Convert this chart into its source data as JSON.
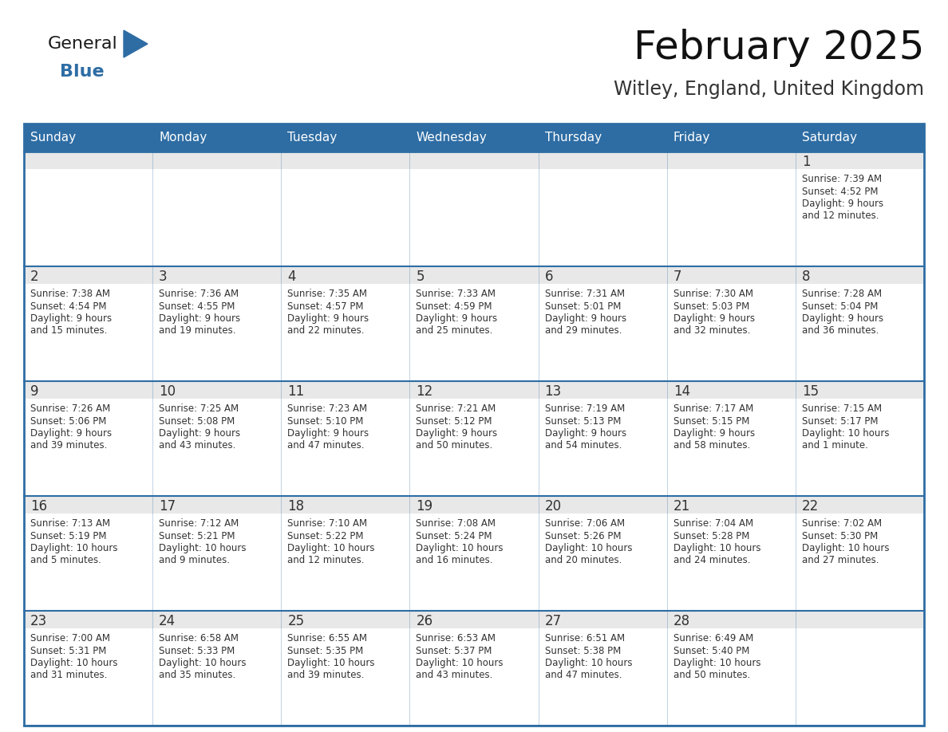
{
  "title": "February 2025",
  "subtitle": "Witley, England, United Kingdom",
  "header_color": "#2E6DA4",
  "header_text_color": "#FFFFFF",
  "day_num_bg_color": "#E8E8E8",
  "cell_bg_color": "#FFFFFF",
  "border_color": "#2E6DA4",
  "text_color": "#333333",
  "days_of_week": [
    "Sunday",
    "Monday",
    "Tuesday",
    "Wednesday",
    "Thursday",
    "Friday",
    "Saturday"
  ],
  "calendar_data": [
    [
      null,
      null,
      null,
      null,
      null,
      null,
      {
        "day": 1,
        "sunrise": "7:39 AM",
        "sunset": "4:52 PM",
        "daylight": "9 hours and 12 minutes."
      }
    ],
    [
      {
        "day": 2,
        "sunrise": "7:38 AM",
        "sunset": "4:54 PM",
        "daylight": "9 hours and 15 minutes."
      },
      {
        "day": 3,
        "sunrise": "7:36 AM",
        "sunset": "4:55 PM",
        "daylight": "9 hours and 19 minutes."
      },
      {
        "day": 4,
        "sunrise": "7:35 AM",
        "sunset": "4:57 PM",
        "daylight": "9 hours and 22 minutes."
      },
      {
        "day": 5,
        "sunrise": "7:33 AM",
        "sunset": "4:59 PM",
        "daylight": "9 hours and 25 minutes."
      },
      {
        "day": 6,
        "sunrise": "7:31 AM",
        "sunset": "5:01 PM",
        "daylight": "9 hours and 29 minutes."
      },
      {
        "day": 7,
        "sunrise": "7:30 AM",
        "sunset": "5:03 PM",
        "daylight": "9 hours and 32 minutes."
      },
      {
        "day": 8,
        "sunrise": "7:28 AM",
        "sunset": "5:04 PM",
        "daylight": "9 hours and 36 minutes."
      }
    ],
    [
      {
        "day": 9,
        "sunrise": "7:26 AM",
        "sunset": "5:06 PM",
        "daylight": "9 hours and 39 minutes."
      },
      {
        "day": 10,
        "sunrise": "7:25 AM",
        "sunset": "5:08 PM",
        "daylight": "9 hours and 43 minutes."
      },
      {
        "day": 11,
        "sunrise": "7:23 AM",
        "sunset": "5:10 PM",
        "daylight": "9 hours and 47 minutes."
      },
      {
        "day": 12,
        "sunrise": "7:21 AM",
        "sunset": "5:12 PM",
        "daylight": "9 hours and 50 minutes."
      },
      {
        "day": 13,
        "sunrise": "7:19 AM",
        "sunset": "5:13 PM",
        "daylight": "9 hours and 54 minutes."
      },
      {
        "day": 14,
        "sunrise": "7:17 AM",
        "sunset": "5:15 PM",
        "daylight": "9 hours and 58 minutes."
      },
      {
        "day": 15,
        "sunrise": "7:15 AM",
        "sunset": "5:17 PM",
        "daylight": "10 hours and 1 minute."
      }
    ],
    [
      {
        "day": 16,
        "sunrise": "7:13 AM",
        "sunset": "5:19 PM",
        "daylight": "10 hours and 5 minutes."
      },
      {
        "day": 17,
        "sunrise": "7:12 AM",
        "sunset": "5:21 PM",
        "daylight": "10 hours and 9 minutes."
      },
      {
        "day": 18,
        "sunrise": "7:10 AM",
        "sunset": "5:22 PM",
        "daylight": "10 hours and 12 minutes."
      },
      {
        "day": 19,
        "sunrise": "7:08 AM",
        "sunset": "5:24 PM",
        "daylight": "10 hours and 16 minutes."
      },
      {
        "day": 20,
        "sunrise": "7:06 AM",
        "sunset": "5:26 PM",
        "daylight": "10 hours and 20 minutes."
      },
      {
        "day": 21,
        "sunrise": "7:04 AM",
        "sunset": "5:28 PM",
        "daylight": "10 hours and 24 minutes."
      },
      {
        "day": 22,
        "sunrise": "7:02 AM",
        "sunset": "5:30 PM",
        "daylight": "10 hours and 27 minutes."
      }
    ],
    [
      {
        "day": 23,
        "sunrise": "7:00 AM",
        "sunset": "5:31 PM",
        "daylight": "10 hours and 31 minutes."
      },
      {
        "day": 24,
        "sunrise": "6:58 AM",
        "sunset": "5:33 PM",
        "daylight": "10 hours and 35 minutes."
      },
      {
        "day": 25,
        "sunrise": "6:55 AM",
        "sunset": "5:35 PM",
        "daylight": "10 hours and 39 minutes."
      },
      {
        "day": 26,
        "sunrise": "6:53 AM",
        "sunset": "5:37 PM",
        "daylight": "10 hours and 43 minutes."
      },
      {
        "day": 27,
        "sunrise": "6:51 AM",
        "sunset": "5:38 PM",
        "daylight": "10 hours and 47 minutes."
      },
      {
        "day": 28,
        "sunrise": "6:49 AM",
        "sunset": "5:40 PM",
        "daylight": "10 hours and 50 minutes."
      },
      null
    ]
  ],
  "logo_text_general": "General",
  "logo_text_blue": "Blue",
  "logo_color_general": "#1a1a1a",
  "logo_color_blue": "#2E6DA4",
  "logo_triangle_color": "#2E6DA4"
}
